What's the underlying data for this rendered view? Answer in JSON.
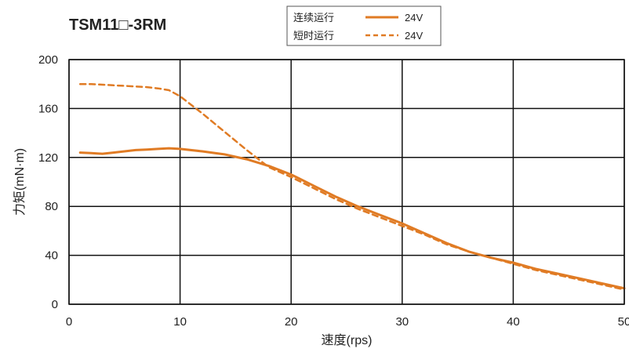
{
  "chart_data": {
    "type": "line",
    "title": "TSM11□-3RM",
    "xlabel": "速度(rps)",
    "ylabel": "力矩(mN·m)",
    "xlim": [
      0,
      50
    ],
    "ylim": [
      0,
      200
    ],
    "xticks": [
      0,
      10,
      20,
      30,
      40,
      50
    ],
    "yticks": [
      0,
      40,
      80,
      120,
      160,
      200
    ],
    "grid": true,
    "legend_position": "top-center",
    "series": [
      {
        "name": "连续运行",
        "voltage": "24V",
        "style": "solid",
        "color": "#E07B24",
        "x": [
          1,
          2,
          3,
          4,
          5,
          6,
          7,
          8,
          9,
          10,
          12,
          14,
          16,
          18,
          20,
          22,
          24,
          26,
          28,
          30,
          32,
          34,
          36,
          38,
          40,
          42,
          44,
          46,
          48,
          50
        ],
        "y": [
          124,
          123.5,
          123,
          124,
          125,
          126,
          126.5,
          127,
          127.5,
          127,
          125,
          122.5,
          118.5,
          113,
          106,
          97,
          88,
          80,
          73,
          66,
          58,
          50,
          43,
          38,
          34,
          29,
          25,
          21,
          17,
          13
        ]
      },
      {
        "name": "短时运行",
        "voltage": "24V",
        "style": "dashed",
        "color": "#E07B24",
        "x": [
          1,
          2,
          3,
          4,
          5,
          6,
          7,
          8,
          9,
          10,
          12,
          14,
          16,
          18,
          20,
          22,
          24,
          26,
          28,
          30,
          32,
          34,
          36,
          38,
          40,
          42,
          44,
          46,
          48,
          50
        ],
        "y": [
          180,
          180,
          179.5,
          179,
          178.5,
          178,
          177.5,
          176.5,
          175,
          170,
          156,
          141,
          126,
          112,
          104,
          95,
          86,
          78,
          71,
          64,
          57,
          49,
          43,
          38,
          33,
          28,
          24,
          20,
          16,
          12
        ]
      }
    ]
  },
  "legend": {
    "items": [
      {
        "label": "连续运行",
        "value": "24V"
      },
      {
        "label": "短时运行",
        "value": "24V"
      }
    ]
  }
}
